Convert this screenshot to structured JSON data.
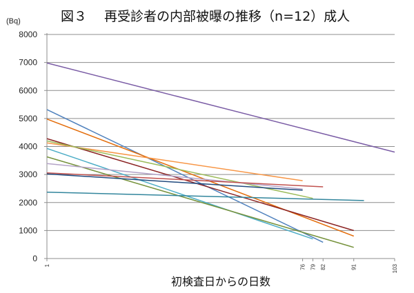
{
  "chart_data": {
    "type": "line",
    "title": "図３　 再受診者の内部被曝の推移（n=12）成人",
    "unit_label": "(Bq)",
    "xlabel": "初検査日からの日数",
    "ylabel": "",
    "ylim": [
      0,
      8000
    ],
    "y_ticks": [
      0,
      1000,
      2000,
      3000,
      4000,
      5000,
      6000,
      7000,
      8000
    ],
    "xlim": [
      1,
      103
    ],
    "x_ticks": [
      1,
      76,
      79,
      82,
      91,
      103
    ],
    "grid": true,
    "legend": "none",
    "series": [
      {
        "color": "#7a5ca5",
        "points": [
          [
            1,
            6980
          ],
          [
            103,
            3800
          ]
        ]
      },
      {
        "color": "#4f81bd",
        "points": [
          [
            1,
            5320
          ],
          [
            82,
            580
          ]
        ]
      },
      {
        "color": "#e36c09",
        "points": [
          [
            1,
            4980
          ],
          [
            91,
            800
          ]
        ]
      },
      {
        "color": "#8b2323",
        "points": [
          [
            1,
            4280
          ],
          [
            91,
            1000
          ]
        ]
      },
      {
        "color": "#f79646",
        "points": [
          [
            1,
            4130
          ],
          [
            76,
            2780
          ]
        ]
      },
      {
        "color": "#9bbb59",
        "points": [
          [
            1,
            4200
          ],
          [
            79,
            2150
          ]
        ]
      },
      {
        "color": "#4bacc6",
        "points": [
          [
            1,
            3930
          ],
          [
            79,
            700
          ]
        ]
      },
      {
        "color": "#76923c",
        "points": [
          [
            1,
            3630
          ],
          [
            91,
            400
          ]
        ]
      },
      {
        "color": "#b3a2c7",
        "points": [
          [
            1,
            3390
          ],
          [
            76,
            2480
          ]
        ]
      },
      {
        "color": "#c0504d",
        "points": [
          [
            1,
            3060
          ],
          [
            82,
            2560
          ]
        ]
      },
      {
        "color": "#1f497d",
        "points": [
          [
            1,
            3020
          ],
          [
            76,
            2440
          ]
        ]
      },
      {
        "color": "#31859c",
        "points": [
          [
            1,
            2370
          ],
          [
            94,
            2070
          ]
        ]
      }
    ]
  }
}
